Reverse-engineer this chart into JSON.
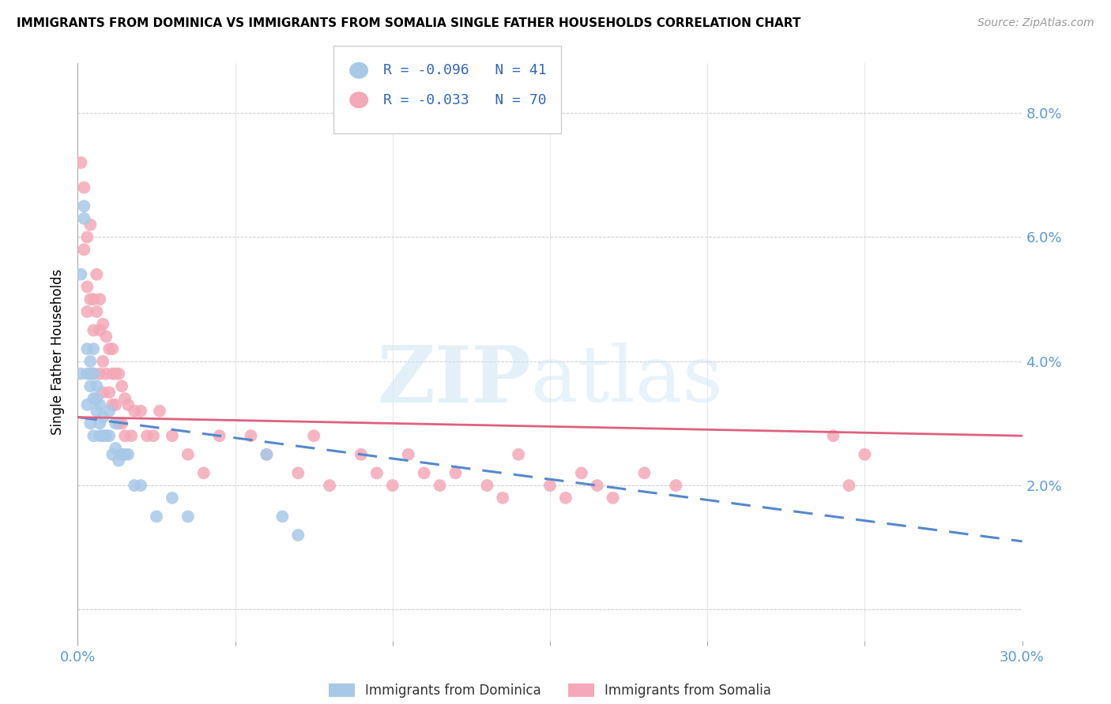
{
  "title": "IMMIGRANTS FROM DOMINICA VS IMMIGRANTS FROM SOMALIA SINGLE FATHER HOUSEHOLDS CORRELATION CHART",
  "source": "Source: ZipAtlas.com",
  "ylabel": "Single Father Households",
  "y_ticks": [
    0.0,
    0.02,
    0.04,
    0.06,
    0.08
  ],
  "y_tick_labels": [
    "",
    "2.0%",
    "4.0%",
    "6.0%",
    "8.0%"
  ],
  "x_range": [
    0.0,
    0.3
  ],
  "y_range": [
    -0.005,
    0.088
  ],
  "dominica_R": -0.096,
  "dominica_N": 41,
  "somalia_R": -0.033,
  "somalia_N": 70,
  "dominica_color": "#a8c8e8",
  "somalia_color": "#f4a8b8",
  "dominica_line_color": "#5588cc",
  "somalia_line_color": "#e06080",
  "watermark_zip": "ZIP",
  "watermark_atlas": "atlas",
  "legend_label_dominica": "Immigrants from Dominica",
  "legend_label_somalia": "Immigrants from Somalia",
  "dominica_x": [
    0.001,
    0.001,
    0.002,
    0.002,
    0.003,
    0.003,
    0.003,
    0.004,
    0.004,
    0.004,
    0.004,
    0.005,
    0.005,
    0.005,
    0.005,
    0.006,
    0.006,
    0.006,
    0.007,
    0.007,
    0.007,
    0.008,
    0.008,
    0.009,
    0.01,
    0.01,
    0.011,
    0.012,
    0.012,
    0.013,
    0.014,
    0.015,
    0.016,
    0.018,
    0.02,
    0.025,
    0.03,
    0.035,
    0.06,
    0.065,
    0.07
  ],
  "dominica_y": [
    0.054,
    0.038,
    0.065,
    0.063,
    0.042,
    0.038,
    0.033,
    0.04,
    0.038,
    0.036,
    0.03,
    0.042,
    0.038,
    0.034,
    0.028,
    0.036,
    0.034,
    0.032,
    0.033,
    0.03,
    0.028,
    0.031,
    0.028,
    0.028,
    0.032,
    0.028,
    0.025,
    0.03,
    0.026,
    0.024,
    0.025,
    0.025,
    0.025,
    0.02,
    0.02,
    0.015,
    0.018,
    0.015,
    0.025,
    0.015,
    0.012
  ],
  "somalia_x": [
    0.001,
    0.002,
    0.002,
    0.003,
    0.003,
    0.003,
    0.004,
    0.004,
    0.005,
    0.005,
    0.005,
    0.006,
    0.006,
    0.007,
    0.007,
    0.007,
    0.008,
    0.008,
    0.008,
    0.009,
    0.009,
    0.01,
    0.01,
    0.011,
    0.011,
    0.011,
    0.012,
    0.012,
    0.013,
    0.013,
    0.014,
    0.014,
    0.015,
    0.015,
    0.016,
    0.017,
    0.018,
    0.02,
    0.022,
    0.024,
    0.026,
    0.03,
    0.035,
    0.04,
    0.045,
    0.055,
    0.06,
    0.07,
    0.075,
    0.08,
    0.09,
    0.095,
    0.1,
    0.105,
    0.11,
    0.115,
    0.12,
    0.13,
    0.135,
    0.14,
    0.15,
    0.155,
    0.16,
    0.165,
    0.17,
    0.18,
    0.19,
    0.24,
    0.245,
    0.25
  ],
  "somalia_y": [
    0.072,
    0.068,
    0.058,
    0.06,
    0.052,
    0.048,
    0.062,
    0.05,
    0.05,
    0.045,
    0.038,
    0.054,
    0.048,
    0.05,
    0.045,
    0.038,
    0.046,
    0.04,
    0.035,
    0.044,
    0.038,
    0.042,
    0.035,
    0.042,
    0.038,
    0.033,
    0.038,
    0.033,
    0.038,
    0.03,
    0.036,
    0.03,
    0.034,
    0.028,
    0.033,
    0.028,
    0.032,
    0.032,
    0.028,
    0.028,
    0.032,
    0.028,
    0.025,
    0.022,
    0.028,
    0.028,
    0.025,
    0.022,
    0.028,
    0.02,
    0.025,
    0.022,
    0.02,
    0.025,
    0.022,
    0.02,
    0.022,
    0.02,
    0.018,
    0.025,
    0.02,
    0.018,
    0.022,
    0.02,
    0.018,
    0.022,
    0.02,
    0.028,
    0.02,
    0.025
  ],
  "dominica_line_x": [
    0.0,
    0.3
  ],
  "dominica_line_y": [
    0.031,
    0.011
  ],
  "somalia_line_x": [
    0.0,
    0.3
  ],
  "somalia_line_y": [
    0.031,
    0.028
  ]
}
